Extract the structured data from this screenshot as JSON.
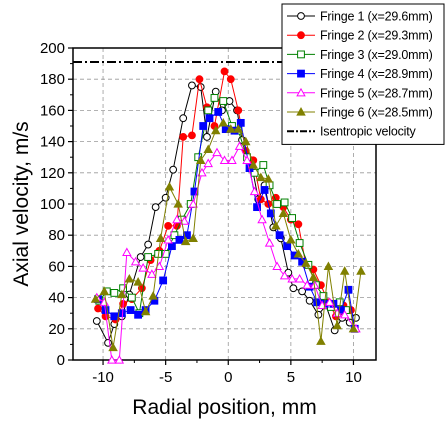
{
  "chart_data": {
    "type": "line",
    "xlabel": "Radial position, mm",
    "ylabel": "Axial velocity, m/s",
    "xlim": [
      -12.4,
      11.8
    ],
    "ylim": [
      0,
      200
    ],
    "xticks": [
      -10,
      -5,
      0,
      5,
      10
    ],
    "xtick_labels": [
      "-10",
      "-5",
      "0",
      "5",
      "10"
    ],
    "yticks": [
      0,
      20,
      40,
      60,
      80,
      100,
      120,
      140,
      160,
      180,
      200
    ],
    "ytick_labels": [
      "0",
      "20",
      "40",
      "60",
      "80",
      "100",
      "120",
      "140",
      "160",
      "180",
      "200"
    ],
    "grid": true,
    "legend_position": "top-right",
    "reference_line": {
      "name": "Isentropic velocity",
      "y": 191,
      "color": "#000000",
      "style": "dash-dot"
    },
    "series": [
      {
        "name": "Fringe 1 (x=29.6mm)",
        "color": "#000000",
        "marker": "circle-open",
        "x": [
          -10.5,
          -9.6,
          -9.1,
          -8.5,
          -7.9,
          -7.0,
          -6.4,
          -5.8,
          -5.0,
          -4.4,
          -3.6,
          -2.9,
          -2.2,
          -1.7,
          -1.0,
          -0.5,
          0.1,
          0.7,
          1.1,
          1.8,
          2.4,
          2.9,
          3.6,
          4.2,
          4.8,
          5.2,
          5.9,
          6.5,
          7.2,
          7.8,
          8.5,
          9.1,
          9.7,
          10.2
        ],
        "y": [
          25,
          11,
          23,
          28,
          42,
          66,
          74,
          98,
          104,
          122,
          155,
          176,
          175,
          143,
          172,
          160,
          166,
          160,
          141,
          128,
          103,
          112,
          85,
          78,
          56,
          46,
          44,
          38,
          29,
          35,
          19,
          27,
          24,
          27
        ]
      },
      {
        "name": "Fringe 2 (x=29.3mm)",
        "color": "#ff0000",
        "marker": "circle-filled",
        "x": [
          -10.4,
          -9.8,
          -9.0,
          -8.4,
          -7.7,
          -6.9,
          -6.2,
          -5.5,
          -4.8,
          -4.1,
          -3.6,
          -2.9,
          -2.3,
          -1.7,
          -1.1,
          -0.3,
          0.2,
          0.8,
          1.4,
          2.0,
          2.6,
          3.2,
          3.8,
          4.4,
          5.0,
          5.6,
          6.2,
          6.8,
          7.4,
          8.0,
          8.6,
          9.2,
          9.8
        ],
        "y": [
          33,
          28,
          26,
          36,
          39,
          46,
          64,
          70,
          86,
          86,
          143,
          144,
          180,
          162,
          150,
          185,
          180,
          160,
          134,
          128,
          103,
          100,
          104,
          98,
          90,
          87,
          61,
          58,
          48,
          37,
          28,
          35,
          32
        ]
      },
      {
        "name": "Fringe 3 (x=29.0mm)",
        "color": "#008000",
        "marker": "square-open",
        "x": [
          -10.3,
          -9.7,
          -9.1,
          -8.4,
          -7.7,
          -7.1,
          -6.4,
          -5.6,
          -5.0,
          -4.3,
          -3.7,
          -3.0,
          -2.4,
          -1.6,
          -1.1,
          -0.4,
          0.3,
          0.8,
          1.5,
          2.1,
          2.8,
          3.3,
          3.9,
          4.5,
          5.1,
          5.7,
          6.4,
          7.0,
          7.6,
          8.2,
          8.9,
          9.4
        ],
        "y": [
          38,
          44,
          43,
          46,
          40,
          30,
          66,
          68,
          68,
          80,
          90,
          100,
          130,
          160,
          168,
          166,
          150,
          147,
          130,
          120,
          125,
          112,
          100,
          101,
          91,
          75,
          61,
          48,
          41,
          34,
          37,
          32
        ]
      },
      {
        "name": "Fringe 4 (x=28.9mm)",
        "color": "#0000ff",
        "marker": "square-filled",
        "x": [
          -10.4,
          -9.8,
          -9.1,
          -8.5,
          -7.8,
          -7.2,
          -6.6,
          -5.9,
          -5.2,
          -4.5,
          -3.9,
          -3.3,
          -2.7,
          -2.0,
          -1.5,
          -0.8,
          -0.2,
          0.5,
          1.0,
          1.7,
          2.3,
          2.9,
          3.4,
          4.1,
          4.7,
          5.3,
          5.9,
          6.5,
          7.1,
          7.7,
          8.4,
          9.0,
          9.6,
          10.1
        ],
        "y": [
          39,
          32,
          28,
          30,
          32,
          29,
          32,
          38,
          51,
          73,
          77,
          80,
          108,
          150,
          155,
          159,
          148,
          147,
          152,
          123,
          98,
          109,
          94,
          80,
          73,
          67,
          63,
          47,
          37,
          36,
          36,
          32,
          45,
          20
        ]
      },
      {
        "name": "Fringe 5 (x=28.7mm)",
        "color": "#ff00ff",
        "marker": "triangle-open",
        "x": [
          -10.5,
          -9.9,
          -9.3,
          -8.7,
          -8.1,
          -7.4,
          -6.8,
          -6.1,
          -5.5,
          -4.8,
          -4.1,
          -3.5,
          -2.8,
          -2.1,
          -1.6,
          -0.9,
          -0.3,
          0.3,
          0.9,
          1.5,
          2.1,
          2.7,
          3.3,
          3.9,
          4.5,
          5.1,
          5.7,
          6.3,
          6.9,
          7.5,
          8.1,
          8.7,
          9.3,
          10.2
        ],
        "y": [
          40,
          37,
          0,
          0,
          69,
          63,
          59,
          55,
          60,
          77,
          90,
          89,
          100,
          120,
          126,
          133,
          128,
          128,
          137,
          128,
          108,
          90,
          75,
          60,
          54,
          52,
          52,
          48,
          48,
          35,
          37,
          30,
          29,
          20
        ]
      },
      {
        "name": "Fringe 6 (x=28.5mm)",
        "color": "#808000",
        "marker": "triangle-filled",
        "x": [
          -10.6,
          -9.9,
          -9.2,
          -8.5,
          -7.9,
          -7.2,
          -6.6,
          -6.0,
          -5.4,
          -4.7,
          -4.0,
          -3.4,
          -2.8,
          -2.2,
          -1.6,
          -1.0,
          -0.4,
          0.2,
          0.8,
          1.4,
          2.0,
          2.6,
          3.2,
          3.8,
          4.4,
          5.0,
          5.6,
          6.2,
          6.8,
          7.4,
          8.0,
          8.7,
          9.3,
          10.0,
          10.6
        ],
        "y": [
          39,
          44,
          8,
          42,
          52,
          50,
          31,
          41,
          78,
          111,
          100,
          76,
          78,
          128,
          135,
          147,
          152,
          148,
          148,
          140,
          125,
          117,
          116,
          86,
          94,
          77,
          68,
          62,
          53,
          12,
          60,
          22,
          57,
          20,
          57
        ]
      }
    ]
  }
}
